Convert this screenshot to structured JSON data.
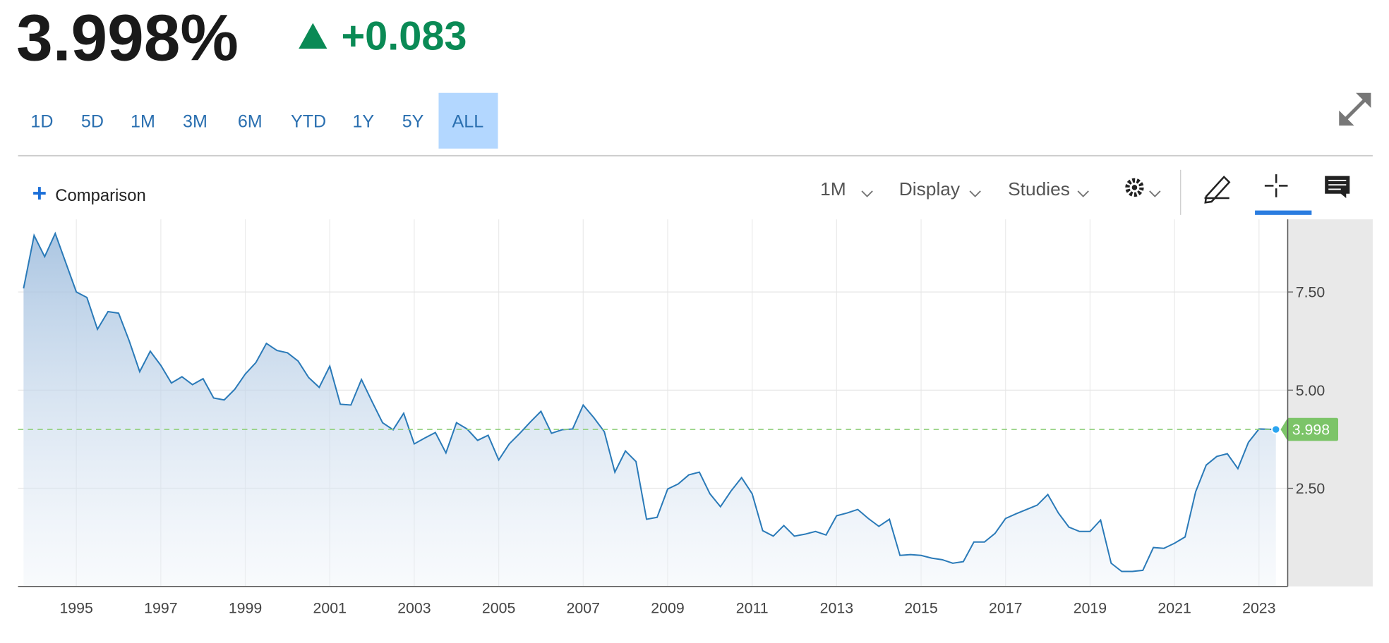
{
  "header": {
    "price": "3.998%",
    "change": "+0.083"
  },
  "range_buttons": [
    "1D",
    "5D",
    "1M",
    "3M",
    "6M",
    "YTD",
    "1Y",
    "5Y",
    "ALL"
  ],
  "toolbar": {
    "comparison": "Comparison",
    "interval": "1M",
    "display": "Display",
    "studies": "Studies"
  },
  "chart_data": {
    "type": "area",
    "x": [
      1993.75,
      1994,
      1994.25,
      1994.5,
      1995,
      1995.25,
      1995.5,
      1995.75,
      1996,
      1996.25,
      1996.5,
      1996.75,
      1997,
      1997.25,
      1997.5,
      1997.75,
      1998,
      1998.25,
      1998.5,
      1998.75,
      1999,
      1999.25,
      1999.5,
      1999.75,
      2000,
      2000.25,
      2000.5,
      2000.75,
      2001,
      2001.25,
      2001.5,
      2001.75,
      2002,
      2002.25,
      2002.5,
      2002.75,
      2003,
      2003.25,
      2003.5,
      2003.75,
      2004,
      2004.25,
      2004.5,
      2004.75,
      2005,
      2005.25,
      2005.5,
      2005.75,
      2006,
      2006.25,
      2006.5,
      2006.75,
      2007,
      2007.25,
      2007.5,
      2007.75,
      2008,
      2008.25,
      2008.5,
      2008.75,
      2009,
      2009.25,
      2009.5,
      2009.75,
      2010,
      2010.25,
      2010.5,
      2010.75,
      2011,
      2011.25,
      2011.5,
      2011.75,
      2012,
      2012.25,
      2012.5,
      2012.75,
      2013,
      2013.25,
      2013.5,
      2013.75,
      2014,
      2014.25,
      2014.5,
      2014.75,
      2015,
      2015.25,
      2015.5,
      2015.75,
      2016,
      2016.25,
      2016.5,
      2016.75,
      2017,
      2017.25,
      2017.5,
      2017.75,
      2018,
      2018.25,
      2018.5,
      2018.75,
      2019,
      2019.25,
      2019.5,
      2019.75,
      2020,
      2020.25,
      2020.5,
      2020.75,
      2021,
      2021.25,
      2021.5,
      2021.75,
      2022,
      2022.25,
      2022.5,
      2022.75,
      2023,
      2023.4
    ],
    "values": [
      7.59,
      8.94,
      8.4,
      8.99,
      7.5,
      7.36,
      6.55,
      7.0,
      6.96,
      6.26,
      5.47,
      5.99,
      5.63,
      5.18,
      5.34,
      5.14,
      5.29,
      4.8,
      4.75,
      5.02,
      5.41,
      5.7,
      6.19,
      6.01,
      5.95,
      5.74,
      5.32,
      5.07,
      5.61,
      4.64,
      4.62,
      5.27,
      4.71,
      4.17,
      3.99,
      4.41,
      3.63,
      3.78,
      3.92,
      3.4,
      4.17,
      4.01,
      3.72,
      3.85,
      3.22,
      3.63,
      3.9,
      4.19,
      4.46,
      3.9,
      3.99,
      4.01,
      4.62,
      4.3,
      3.94,
      2.91,
      3.45,
      3.18,
      1.71,
      1.76,
      2.48,
      2.61,
      2.84,
      2.91,
      2.36,
      2.03,
      2.43,
      2.77,
      2.36,
      1.42,
      1.28,
      1.55,
      1.28,
      1.33,
      1.4,
      1.31,
      1.8,
      1.87,
      1.96,
      1.73,
      1.53,
      1.71,
      0.79,
      0.81,
      0.79,
      0.72,
      0.68,
      0.59,
      0.63,
      1.13,
      1.13,
      1.35,
      1.73,
      1.85,
      1.96,
      2.07,
      2.34,
      1.87,
      1.51,
      1.4,
      1.4,
      1.69,
      0.59,
      0.38,
      0.38,
      0.41,
      0.99,
      0.97,
      1.1,
      1.26,
      2.41,
      3.09,
      3.31,
      3.38,
      3.0,
      3.67,
      4.01,
      3.998
    ],
    "color": "#2a7ab8",
    "xlim": [
      1993.62,
      2023.68
    ],
    "xticks": [
      1995,
      1997,
      1999,
      2001,
      2003,
      2005,
      2007,
      2009,
      2011,
      2013,
      2015,
      2017,
      2019,
      2021,
      2023
    ],
    "ylim": [
      0,
      9.35
    ],
    "yticks": [
      {
        "value": 2.5,
        "label": "2.50"
      },
      {
        "value": 5,
        "label": "5.00"
      },
      {
        "value": 7.5,
        "label": "7.50"
      }
    ],
    "grid": true
  }
}
